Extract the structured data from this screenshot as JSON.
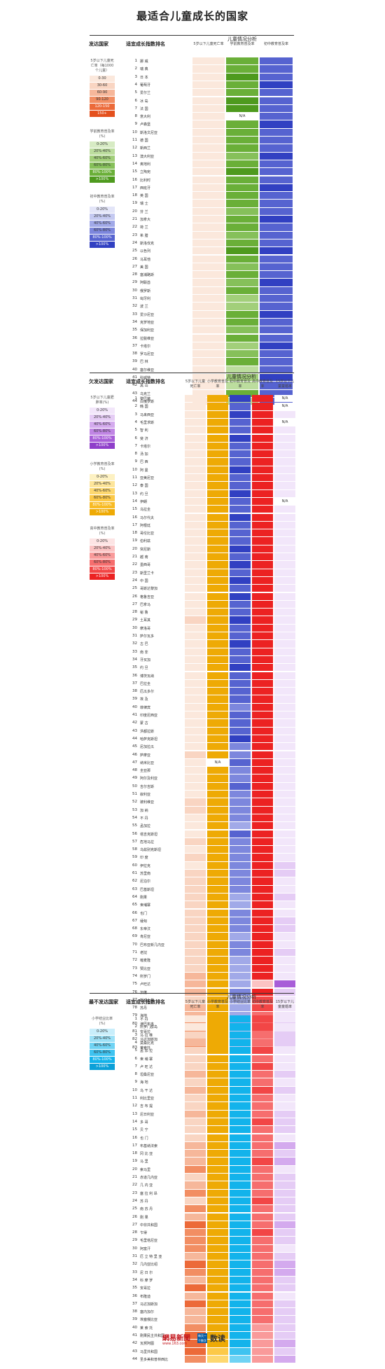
{
  "title": "最适合儿童成长的国家",
  "colors": {
    "mortality": [
      "#fbe8dc",
      "#f9d5c2",
      "#f6b79a",
      "#f28e63",
      "#ec6a39",
      "#e4501d"
    ],
    "school_green": [
      "#d7ebc4",
      "#bcdd9e",
      "#a2cf7a",
      "#86c05a",
      "#6aaf38",
      "#4e9a1e"
    ],
    "school_yellow": [
      "#fdf1c2",
      "#fde59a",
      "#fdd870",
      "#fcc948",
      "#f8bb24",
      "#eeaa05"
    ],
    "school_cyan": [
      "#c9eefb",
      "#9de1f7",
      "#6fd3f4",
      "#3fc3f0",
      "#13b3eb",
      "#0ba0d8"
    ],
    "child_blue": [
      "#e3e5f8",
      "#c4c9f1",
      "#a1a9e8",
      "#7d87dd",
      "#5663d0",
      "#3140c2"
    ],
    "child_purple": [
      "#f2e6fa",
      "#e5ccf5",
      "#d4aaee",
      "#c085e4",
      "#a85ed8",
      "#8f3fca"
    ],
    "marriage_red": [
      "#fde4e4",
      "#fbc3c3",
      "#f99a9a",
      "#f66e6e",
      "#f24646",
      "#ec2222"
    ]
  },
  "chart_data": [
    {
      "type": "table",
      "section_label": "发达国家",
      "rank_header": "适宜成长指数排名",
      "analysis_header": "儿童情况分析",
      "columns": [
        "5岁以下儿童死亡率",
        "学前教育普及率",
        "初中教育普及率"
      ],
      "legends": [
        {
          "title": "5岁以下儿童死亡率（每1000个儿童）",
          "items": [
            "0-30",
            "30-60",
            "60-90",
            "90-120",
            "120-150",
            "150+"
          ]
        },
        {
          "title": "学前教育普及率(%)",
          "items": [
            "0-20%",
            "20%-40%",
            "40%-60%",
            "60%-80%",
            "80%-100%",
            ">100%"
          ]
        },
        {
          "title": "初中教育普及率(%)",
          "items": [
            "0-20%",
            "20%-40%",
            "40%-60%",
            "60%-80%",
            "80%-100%",
            ">100%"
          ]
        }
      ],
      "countries": [
        "挪 威",
        "瑞 典",
        "日 本",
        "葡萄牙",
        "爱尔兰",
        "冰 岛",
        "法 国",
        "意大利",
        "卢森堡",
        "斯洛文尼亚",
        "德 国",
        "新西兰",
        "澳大利亚",
        "奥地利",
        "立陶宛",
        "比利时",
        "西班牙",
        "英 国",
        "瑞 士",
        "芬 兰",
        "加拿大",
        "荷 兰",
        "希 腊",
        "斯洛伐克",
        "以色列",
        "马耳他",
        "美 国",
        "塞浦路斯",
        "阿联酋",
        "俄罗斯",
        "匈牙利",
        "波 兰",
        "爱沙尼亚",
        "克罗地亚",
        "保加利亚",
        "拉脱维亚",
        "卡塔尔",
        "罗马尼亚",
        "巴 林",
        "塞尔维亚",
        "科威特",
        "黑 山",
        "乌克兰",
        "白俄罗斯"
      ],
      "levels": [
        [
          0,
          0,
          0,
          0,
          0,
          0,
          0,
          0,
          0,
          0,
          0,
          0,
          0,
          0,
          0,
          0,
          0,
          0,
          0,
          0,
          0,
          0,
          0,
          0,
          0,
          0,
          0,
          0,
          0,
          0,
          0,
          0,
          0,
          0,
          0,
          0,
          0,
          0,
          0,
          0,
          0,
          0,
          0,
          0
        ],
        [
          4,
          4,
          5,
          4,
          4,
          5,
          5,
          -1,
          4,
          4,
          4,
          4,
          3,
          4,
          5,
          4,
          4,
          4,
          4,
          3,
          4,
          4,
          3,
          4,
          5,
          4,
          3,
          4,
          3,
          4,
          2,
          2,
          4,
          4,
          3,
          4,
          2,
          3,
          4,
          1,
          2,
          1,
          4,
          1
        ],
        [
          4,
          4,
          4,
          5,
          4,
          4,
          4,
          4,
          5,
          4,
          4,
          4,
          5,
          4,
          4,
          4,
          5,
          4,
          4,
          4,
          5,
          4,
          4,
          4,
          5,
          4,
          4,
          4,
          5,
          4,
          4,
          4,
          5,
          4,
          4,
          4,
          5,
          4,
          4,
          4,
          5,
          4,
          4,
          4
        ]
      ],
      "na_label": "N/A"
    },
    {
      "type": "table",
      "section_label": "欠发达国家",
      "rank_header": "适宜成长指数排名",
      "analysis_header": "儿童情况分析",
      "columns": [
        "5岁以下儿童死亡率",
        "小学教育普及率",
        "初中教育普及率",
        "高中教育普及率",
        "15岁以下儿童童婚率"
      ],
      "legends": [
        {
          "title": "5岁以下儿童肥胖率(%)",
          "items": [
            "0-20%",
            "20%-40%",
            "40%-60%",
            "60%-80%",
            "80%-100%",
            ">100%"
          ]
        },
        {
          "title": "小学教育普及率(%)",
          "items": [
            "0-20%",
            "20%-40%",
            "40%-60%",
            "60%-80%",
            "80%-100%",
            ">100%"
          ]
        },
        {
          "title": "高中教育普及率(%)",
          "items": [
            "0-20%",
            "20%-40%",
            "40%-60%",
            "60%-80%",
            "80%-100%",
            ">100%"
          ]
        }
      ],
      "countries": [
        "黎巴嫩",
        "韩 国",
        "马来西亚",
        "毛里求斯",
        "智 利",
        "斐 济",
        "卡塔尔",
        "汤 加",
        "巴 西",
        "阿 曼",
        "亚美尼亚",
        "泰 国",
        "约 旦",
        "伊朗",
        "乌拉圭",
        "马尔代夫",
        "阿根廷",
        "哥伦比亚",
        "伯利兹",
        "突尼斯",
        "越 南",
        "墨西哥",
        "斯里兰卡",
        "中 国",
        "哥斯达黎加",
        "格鲁吉亚",
        "巴拿马",
        "秘 鲁",
        "土耳其",
        "摩洛哥",
        "萨尔瓦多",
        "古 巴",
        "南 非",
        "牙买加",
        "约 旦",
        "博茨瓦纳",
        "巴拉圭",
        "厄瓜多尔",
        "埃 及",
        "菲律宾",
        "印度尼西亚",
        "蒙 古",
        "洪都拉斯",
        "哈萨克斯坦",
        "尼加拉瓜",
        "萨摩亚",
        "纳米比亚",
        "圭亚那",
        "阿尔及利亚",
        "吉尔吉斯",
        "叙利亚",
        "玻利维亚",
        "加 纳",
        "不 丹",
        "孟加拉",
        "塔吉克斯坦",
        "危地马拉",
        "乌兹别克斯坦",
        "印 度",
        "伊拉克",
        "苏里南",
        "尼泊尔",
        "巴基斯坦",
        "刚果",
        "柬埔寨",
        "也门",
        "缅甸",
        "东帝汶",
        "肯尼亚",
        "巴布亚新几内亚",
        "老挝",
        "喀麦隆",
        "赞比亚",
        "所罗门",
        "卢旺达",
        "加蓬",
        "斯威士兰",
        "苏丹",
        "海地",
        "津巴布韦",
        "安哥拉",
        "马达加斯加",
        "莱索托"
      ],
      "levels": [
        [
          0,
          0,
          0,
          0,
          0,
          0,
          0,
          0,
          0,
          0,
          0,
          0,
          0,
          0,
          0,
          0,
          0,
          0,
          0,
          0,
          0,
          0,
          0,
          0,
          0,
          0,
          0,
          0,
          1,
          0,
          0,
          0,
          0,
          0,
          0,
          0,
          0,
          0,
          0,
          0,
          0,
          0,
          0,
          0,
          0,
          1,
          0,
          0,
          0,
          0,
          0,
          1,
          1,
          0,
          0,
          0,
          1,
          0,
          1,
          0,
          1,
          1,
          1,
          1,
          1,
          1,
          1,
          1,
          1,
          1,
          1,
          1,
          1,
          2,
          2,
          2,
          1,
          2,
          2,
          3,
          3,
          2,
          3
        ],
        [
          5,
          5,
          5,
          5,
          5,
          5,
          5,
          5,
          5,
          5,
          5,
          5,
          5,
          5,
          5,
          5,
          5,
          5,
          5,
          5,
          5,
          5,
          5,
          5,
          5,
          5,
          5,
          5,
          5,
          5,
          5,
          5,
          5,
          5,
          5,
          5,
          5,
          5,
          5,
          5,
          5,
          5,
          5,
          5,
          5,
          5,
          -1,
          5,
          5,
          5,
          5,
          5,
          5,
          5,
          5,
          5,
          5,
          5,
          5,
          5,
          5,
          5,
          5,
          5,
          5,
          5,
          5,
          5,
          5,
          5,
          5,
          5,
          5,
          5,
          5,
          5,
          5,
          5,
          5,
          5,
          5,
          5,
          5
        ],
        [
          5,
          4,
          5,
          4,
          4,
          5,
          4,
          4,
          4,
          5,
          4,
          4,
          5,
          4,
          4,
          5,
          4,
          4,
          4,
          5,
          4,
          5,
          4,
          5,
          4,
          5,
          4,
          4,
          5,
          4,
          4,
          5,
          4,
          4,
          5,
          4,
          4,
          4,
          4,
          3,
          4,
          4,
          4,
          5,
          3,
          3,
          4,
          3,
          3,
          4,
          3,
          3,
          3,
          3,
          2,
          4,
          3,
          3,
          3,
          3,
          3,
          3,
          3,
          2,
          2,
          3,
          3,
          3,
          2,
          3,
          3,
          2,
          2,
          2,
          2,
          3,
          2,
          2,
          2,
          2,
          1,
          1,
          1
        ],
        [
          5,
          5,
          5,
          5,
          5,
          5,
          5,
          5,
          5,
          5,
          5,
          5,
          5,
          5,
          5,
          5,
          5,
          5,
          5,
          5,
          5,
          5,
          5,
          5,
          5,
          5,
          5,
          5,
          5,
          5,
          5,
          5,
          5,
          5,
          5,
          5,
          5,
          5,
          5,
          5,
          5,
          5,
          5,
          5,
          5,
          5,
          5,
          5,
          5,
          5,
          5,
          5,
          5,
          5,
          5,
          5,
          5,
          5,
          5,
          5,
          5,
          5,
          5,
          5,
          5,
          5,
          5,
          5,
          5,
          5,
          5,
          5,
          5,
          5,
          1,
          5,
          4,
          4,
          3,
          3,
          3,
          2,
          2
        ],
        [
          -1,
          -1,
          0,
          -1,
          0,
          0,
          0,
          0,
          0,
          0,
          0,
          0,
          0,
          -1,
          0,
          0,
          0,
          0,
          0,
          0,
          0,
          0,
          0,
          0,
          0,
          0,
          0,
          0,
          0,
          0,
          0,
          0,
          0,
          0,
          0,
          0,
          0,
          0,
          0,
          0,
          0,
          0,
          0,
          0,
          0,
          0,
          0,
          0,
          0,
          0,
          0,
          0,
          0,
          0,
          0,
          0,
          0,
          0,
          0,
          1,
          1,
          0,
          0,
          1,
          0,
          0,
          1,
          1,
          0,
          0,
          1,
          0,
          0,
          0,
          4,
          1,
          0,
          0,
          0,
          1,
          0,
          1,
          0
        ]
      ],
      "na_label": "N/A"
    },
    {
      "type": "table",
      "section_label": "最不发达国家",
      "rank_header": "适宜成长指数排名",
      "analysis_header": "儿童情况分析",
      "columns": [
        "5岁以下儿童死亡率",
        "小学教育普及率",
        "小学结业比率",
        "初中教育普及率",
        "15岁以下儿童童婚率"
      ],
      "legends": [
        {
          "title": "小学结业比率(%)",
          "items": [
            "0-20%",
            "20%-40%",
            "40%-60%",
            "60%-80%",
            "80%-100%",
            ">100%"
          ]
        }
      ],
      "countries": [
        "不 丹",
        "所罗门群岛",
        "马 拉 维",
        "莫桑比克",
        "孟 加 拉",
        "柬 埔 寨",
        "卢 旺 达",
        "坦桑尼亚",
        "海 地",
        "乌 干 达",
        "利比里亚",
        "吉 布 提",
        "尼日利亚",
        "多 哥",
        "贝 宁",
        "也 门",
        "布基纳法索",
        "冈 比 亚",
        "马 里",
        "索马里",
        "赤道几内亚",
        "几 内 亚",
        "塞 拉 利 昂",
        "苏 丹",
        "南 苏 丹",
        "刚 果",
        "中非共和国",
        "乍得",
        "毛里塔尼亚",
        "阿富汗",
        "厄 立 特 里 亚",
        "几内亚比绍",
        "尼 日 尔",
        "科 摩 罗",
        "安哥拉",
        "布隆迪",
        "马达加斯加",
        "塞内加尔",
        "埃塞俄比亚",
        "莱 索 托",
        "刚果民主共和国",
        "瓦努阿图",
        "马里共和国",
        "圣多美和普林西比"
      ],
      "levels": [
        [
          0,
          0,
          1,
          2,
          1,
          1,
          1,
          2,
          1,
          2,
          1,
          1,
          2,
          1,
          1,
          1,
          2,
          2,
          2,
          3,
          1,
          2,
          3,
          1,
          3,
          2,
          4,
          3,
          3,
          3,
          2,
          4,
          3,
          2,
          4,
          2,
          4,
          2,
          2,
          3,
          4,
          4,
          4,
          3
        ],
        [
          5,
          5,
          5,
          5,
          5,
          5,
          5,
          5,
          5,
          5,
          5,
          5,
          5,
          5,
          5,
          5,
          5,
          5,
          5,
          5,
          5,
          5,
          5,
          5,
          5,
          5,
          5,
          5,
          5,
          5,
          5,
          5,
          5,
          5,
          5,
          5,
          5,
          5,
          5,
          5,
          5,
          5,
          3,
          2
        ],
        [
          4,
          4,
          4,
          4,
          4,
          4,
          4,
          4,
          4,
          4,
          4,
          4,
          4,
          4,
          4,
          4,
          4,
          4,
          4,
          4,
          4,
          4,
          4,
          4,
          4,
          4,
          4,
          4,
          4,
          4,
          4,
          4,
          4,
          4,
          4,
          4,
          4,
          4,
          4,
          4,
          4,
          4,
          3,
          2
        ],
        [
          4,
          4,
          3,
          3,
          4,
          3,
          4,
          3,
          3,
          4,
          3,
          3,
          3,
          4,
          3,
          3,
          3,
          3,
          4,
          3,
          3,
          3,
          3,
          4,
          3,
          3,
          3,
          4,
          3,
          3,
          3,
          3,
          3,
          3,
          3,
          3,
          3,
          3,
          3,
          2,
          2,
          2,
          2,
          2
        ],
        [
          0,
          0,
          1,
          1,
          0,
          0,
          0,
          1,
          0,
          1,
          0,
          0,
          1,
          1,
          1,
          0,
          2,
          1,
          2,
          0,
          1,
          1,
          1,
          1,
          1,
          1,
          2,
          1,
          1,
          0,
          1,
          2,
          2,
          1,
          1,
          0,
          1,
          1,
          1,
          1,
          1,
          2,
          1,
          2
        ]
      ],
      "na_label": "N/A"
    }
  ],
  "footer": {
    "brand_wangyi": "網易新聞",
    "brand_url": "www.163.com",
    "brand_shudu_badge": "每天一个数字",
    "brand_shudu": "数读"
  }
}
